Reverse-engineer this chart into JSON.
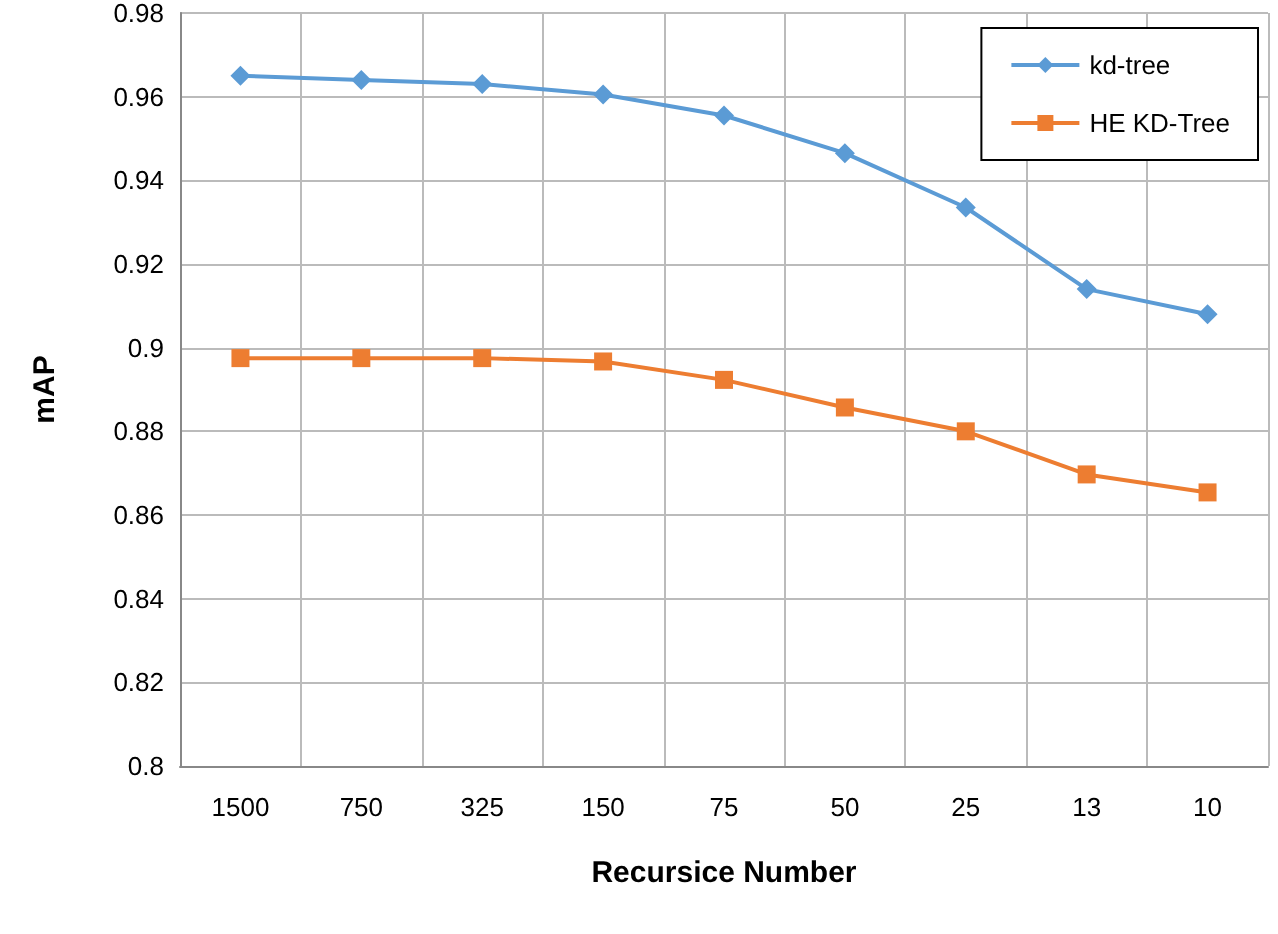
{
  "chart_data": {
    "type": "line",
    "xlabel": "Recursice Number",
    "ylabel": "mAP",
    "categories": [
      "1500",
      "750",
      "325",
      "150",
      "75",
      "50",
      "25",
      "13",
      "10"
    ],
    "series": [
      {
        "name": "kd-tree",
        "color": "#5b9bd5",
        "marker": "diamond",
        "values": [
          0.965,
          0.964,
          0.963,
          0.9605,
          0.9555,
          0.9465,
          0.9335,
          0.914,
          0.908
        ]
      },
      {
        "name": "HE KD-Tree",
        "color": "#ed7d31",
        "marker": "square",
        "values": [
          0.8975,
          0.8975,
          0.8975,
          0.8967,
          0.8923,
          0.8857,
          0.88,
          0.8697,
          0.8654
        ]
      }
    ],
    "ylim": [
      0.8,
      0.98
    ],
    "yticks": [
      0.8,
      0.82,
      0.84,
      0.86,
      0.88,
      0.9,
      0.92,
      0.94,
      0.96,
      0.98
    ],
    "grid": true,
    "legend": "top right"
  }
}
